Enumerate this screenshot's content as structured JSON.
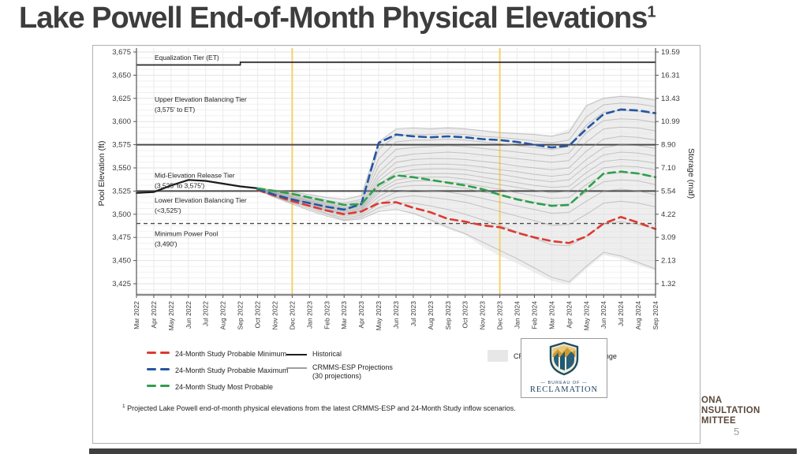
{
  "slide": {
    "title": "Lake Powell End-of-Month Physical Elevations",
    "title_superscript": "1",
    "footnote_superscript": "1",
    "footnote": "Projected Lake Powell end-of-month physical elevations from the latest CRMMS-ESP and 24-Month Study inflow scenarios.",
    "page_number": "5"
  },
  "branding": {
    "bureau_line1": "BUREAU OF",
    "bureau_line2": "RECLAMATION",
    "partial_text_lines": [
      "ONA",
      "NSULTATION",
      "MITTEE"
    ]
  },
  "legend": {
    "items": [
      {
        "label": "24-Month Study Probable Minimum",
        "swatch": "dash",
        "color": "#dd3a30"
      },
      {
        "label": "24-Month Study Probable Maximum",
        "swatch": "dash",
        "color": "#2456a4"
      },
      {
        "label": "24-Month Study Most Probable",
        "swatch": "dash",
        "color": "#2ea04d"
      },
      {
        "label": "Historical",
        "swatch": "line",
        "color": "#1c1c1c"
      },
      {
        "label": "CRMMS-ESP Projections",
        "label2": "(30 projections)",
        "swatch": "line",
        "color": "#9e9e9e"
      },
      {
        "label": "CRMMS-ESP Projections Range",
        "swatch": "box",
        "color": "#e7e7e7"
      }
    ]
  },
  "chart_data": {
    "type": "line",
    "ylabel_left": "Pool Elevation (ft)",
    "ylabel_right": "Storage (maf)",
    "grid": true,
    "ylim": [
      3413,
      3683
    ],
    "x_categories": [
      "Mar 2022",
      "Apr 2022",
      "May 2022",
      "Jun 2022",
      "Jul 2022",
      "Aug 2022",
      "Sep 2022",
      "Oct 2022",
      "Nov 2022",
      "Dec 2022",
      "Jan 2023",
      "Feb 2023",
      "Mar 2023",
      "Apr 2023",
      "May 2023",
      "Jun 2023",
      "Jul 2023",
      "Aug 2023",
      "Sep 2023",
      "Oct 2023",
      "Nov 2023",
      "Dec 2023",
      "Jan 2024",
      "Feb 2024",
      "Mar 2024",
      "Apr 2024",
      "May 2024",
      "Jun 2024",
      "Jul 2024",
      "Aug 2024",
      "Sep 2024"
    ],
    "y_left_values": [
      3675,
      3650,
      3625,
      3600,
      3575,
      3550,
      3525,
      3500,
      3475,
      3450,
      3425
    ],
    "y_left_ticks": [
      "3,675",
      "3,650",
      "3,625",
      "3,600",
      "3,575",
      "3,550",
      "3,525",
      "3,500",
      "3,475",
      "3,450",
      "3,425"
    ],
    "y_right_ticks": [
      "19.59",
      "16.31",
      "13.43",
      "10.99",
      "8.90",
      "7.10",
      "5.54",
      "4.22",
      "3.09",
      "2.13",
      "1.32"
    ],
    "vertical_markers": {
      "months": [
        "Dec 2022",
        "Dec 2023"
      ],
      "color": "#f5d06e"
    },
    "equalization_line": {
      "elevations": [
        3661,
        3664
      ],
      "step_month_index": 6,
      "color": "#1c1c1c"
    },
    "horizontal_lines": [
      {
        "elevation": 3575,
        "style": "solid"
      },
      {
        "elevation": 3525,
        "style": "solid"
      },
      {
        "elevation": 3490,
        "style": "dashed"
      }
    ],
    "tier_labels": [
      {
        "lines": [
          "Equalization Tier (ET)"
        ],
        "anchor": 3669
      },
      {
        "lines": [
          "Upper Elevation Balancing Tier",
          "(3,575' to ET)"
        ],
        "anchor": 3624
      },
      {
        "lines": [
          "Mid-Elevation Release Tier",
          "(3,525' to 3,575')"
        ],
        "anchor": 3542
      },
      {
        "lines": [
          "Lower Elevation Balancing Tier",
          "(<3,525')"
        ],
        "anchor": 3515
      },
      {
        "lines": [
          "Minimum Power Pool",
          "(3,490')"
        ],
        "anchor": 3479
      }
    ],
    "series": [
      {
        "name": "Historical",
        "color": "#1c1c1c",
        "style": "solid",
        "start_index": 0,
        "values": [
          3523,
          3524,
          3531,
          3537,
          3536,
          3533,
          3530,
          3528
        ]
      },
      {
        "name": "24-Month Study Probable Minimum",
        "color": "#dd3a30",
        "style": "dashed",
        "start_index": 7,
        "values": [
          3526,
          3520,
          3514,
          3509,
          3504,
          3500,
          3503,
          3512,
          3513,
          3507,
          3502,
          3495,
          3492,
          3488,
          3486,
          3480,
          3475,
          3471,
          3469,
          3476,
          3490,
          3497,
          3491,
          3484
        ]
      },
      {
        "name": "24-Month Study Most Probable",
        "color": "#2ea04d",
        "style": "dashed",
        "start_index": 7,
        "values": [
          3528,
          3525,
          3522,
          3518,
          3514,
          3510,
          3511,
          3532,
          3542,
          3540,
          3537,
          3534,
          3531,
          3527,
          3521,
          3516,
          3512,
          3509,
          3510,
          3527,
          3544,
          3546,
          3544,
          3540
        ]
      },
      {
        "name": "24-Month Study Probable Maximum",
        "color": "#2456a4",
        "style": "dashed",
        "start_index": 7,
        "values": [
          3527,
          3521,
          3516,
          3512,
          3508,
          3505,
          3511,
          3577,
          3586,
          3584,
          3583,
          3584,
          3583,
          3581,
          3580,
          3578,
          3575,
          3572,
          3574,
          3592,
          3608,
          3613,
          3612,
          3609
        ]
      }
    ],
    "esp_range": {
      "name": "CRMMS-ESP Projections Range",
      "color": "#e0e0e0",
      "start_index": 7,
      "max": [
        3529,
        3527,
        3525,
        3522,
        3519,
        3517,
        3521,
        3578,
        3592,
        3593,
        3593,
        3594,
        3593,
        3591,
        3589,
        3588,
        3587,
        3585,
        3592,
        3618,
        3626,
        3628,
        3627,
        3624
      ],
      "min": [
        3526,
        3518,
        3511,
        3504,
        3498,
        3493,
        3495,
        3503,
        3505,
        3500,
        3492,
        3484,
        3478,
        3465,
        3455,
        3447,
        3437,
        3428,
        3424,
        3441,
        3456,
        3452,
        3445,
        3439
      ]
    },
    "esp_traces": {
      "name": "CRMMS-ESP Projections",
      "count_label": "(30 projections)",
      "color": "#9e9e9e",
      "start_index": 7,
      "traces": [
        [
          3528,
          3526,
          3524,
          3521,
          3518,
          3516,
          3520,
          3578,
          3592,
          3593,
          3592,
          3593,
          3592,
          3590,
          3588,
          3587,
          3586,
          3584,
          3588,
          3617,
          3625,
          3627,
          3626,
          3623
        ],
        [
          3528,
          3525,
          3522,
          3519,
          3515,
          3512,
          3516,
          3570,
          3585,
          3586,
          3586,
          3587,
          3586,
          3584,
          3583,
          3581,
          3579,
          3577,
          3580,
          3605,
          3618,
          3620,
          3619,
          3616
        ],
        [
          3527,
          3524,
          3521,
          3517,
          3513,
          3510,
          3514,
          3560,
          3578,
          3580,
          3580,
          3581,
          3580,
          3578,
          3576,
          3574,
          3572,
          3570,
          3573,
          3596,
          3610,
          3612,
          3611,
          3608
        ],
        [
          3527,
          3524,
          3520,
          3516,
          3512,
          3508,
          3512,
          3552,
          3570,
          3572,
          3573,
          3574,
          3573,
          3571,
          3569,
          3567,
          3565,
          3563,
          3566,
          3588,
          3601,
          3603,
          3602,
          3599
        ],
        [
          3527,
          3523,
          3519,
          3515,
          3511,
          3507,
          3510,
          3545,
          3562,
          3565,
          3566,
          3567,
          3566,
          3564,
          3562,
          3560,
          3558,
          3556,
          3558,
          3578,
          3592,
          3594,
          3593,
          3590
        ],
        [
          3527,
          3523,
          3519,
          3514,
          3510,
          3506,
          3509,
          3540,
          3556,
          3559,
          3560,
          3560,
          3559,
          3557,
          3555,
          3552,
          3550,
          3548,
          3550,
          3568,
          3581,
          3584,
          3583,
          3580
        ],
        [
          3527,
          3522,
          3518,
          3514,
          3509,
          3505,
          3508,
          3536,
          3550,
          3553,
          3554,
          3554,
          3553,
          3551,
          3548,
          3546,
          3543,
          3541,
          3543,
          3559,
          3572,
          3575,
          3574,
          3571
        ],
        [
          3527,
          3522,
          3517,
          3513,
          3508,
          3504,
          3507,
          3532,
          3545,
          3548,
          3549,
          3549,
          3548,
          3545,
          3543,
          3540,
          3537,
          3535,
          3537,
          3552,
          3564,
          3567,
          3566,
          3563
        ],
        [
          3527,
          3522,
          3517,
          3512,
          3507,
          3503,
          3506,
          3529,
          3541,
          3544,
          3544,
          3544,
          3543,
          3540,
          3537,
          3534,
          3531,
          3529,
          3530,
          3545,
          3557,
          3559,
          3558,
          3555
        ],
        [
          3526,
          3521,
          3516,
          3512,
          3506,
          3502,
          3505,
          3526,
          3537,
          3540,
          3540,
          3540,
          3538,
          3535,
          3532,
          3529,
          3526,
          3523,
          3525,
          3539,
          3550,
          3552,
          3551,
          3548
        ],
        [
          3526,
          3521,
          3516,
          3511,
          3505,
          3501,
          3504,
          3523,
          3533,
          3536,
          3536,
          3535,
          3533,
          3530,
          3527,
          3523,
          3520,
          3517,
          3518,
          3532,
          3543,
          3545,
          3544,
          3540
        ],
        [
          3526,
          3520,
          3515,
          3510,
          3504,
          3500,
          3503,
          3519,
          3529,
          3531,
          3531,
          3530,
          3528,
          3524,
          3521,
          3517,
          3513,
          3510,
          3511,
          3524,
          3535,
          3537,
          3536,
          3532
        ],
        [
          3526,
          3520,
          3514,
          3509,
          3503,
          3498,
          3501,
          3515,
          3524,
          3526,
          3525,
          3524,
          3521,
          3517,
          3513,
          3509,
          3505,
          3501,
          3502,
          3514,
          3525,
          3527,
          3525,
          3521
        ],
        [
          3526,
          3519,
          3513,
          3508,
          3501,
          3496,
          3499,
          3511,
          3518,
          3520,
          3518,
          3516,
          3513,
          3508,
          3503,
          3498,
          3493,
          3488,
          3489,
          3500,
          3512,
          3514,
          3512,
          3508
        ],
        [
          3526,
          3519,
          3512,
          3506,
          3500,
          3494,
          3497,
          3507,
          3512,
          3512,
          3509,
          3505,
          3500,
          3494,
          3488,
          3481,
          3474,
          3467,
          3466,
          3476,
          3490,
          3492,
          3489,
          3484
        ],
        [
          3526,
          3518,
          3511,
          3504,
          3498,
          3493,
          3495,
          3503,
          3505,
          3501,
          3494,
          3486,
          3479,
          3470,
          3461,
          3452,
          3442,
          3432,
          3427,
          3444,
          3459,
          3455,
          3448,
          3441
        ]
      ]
    }
  }
}
